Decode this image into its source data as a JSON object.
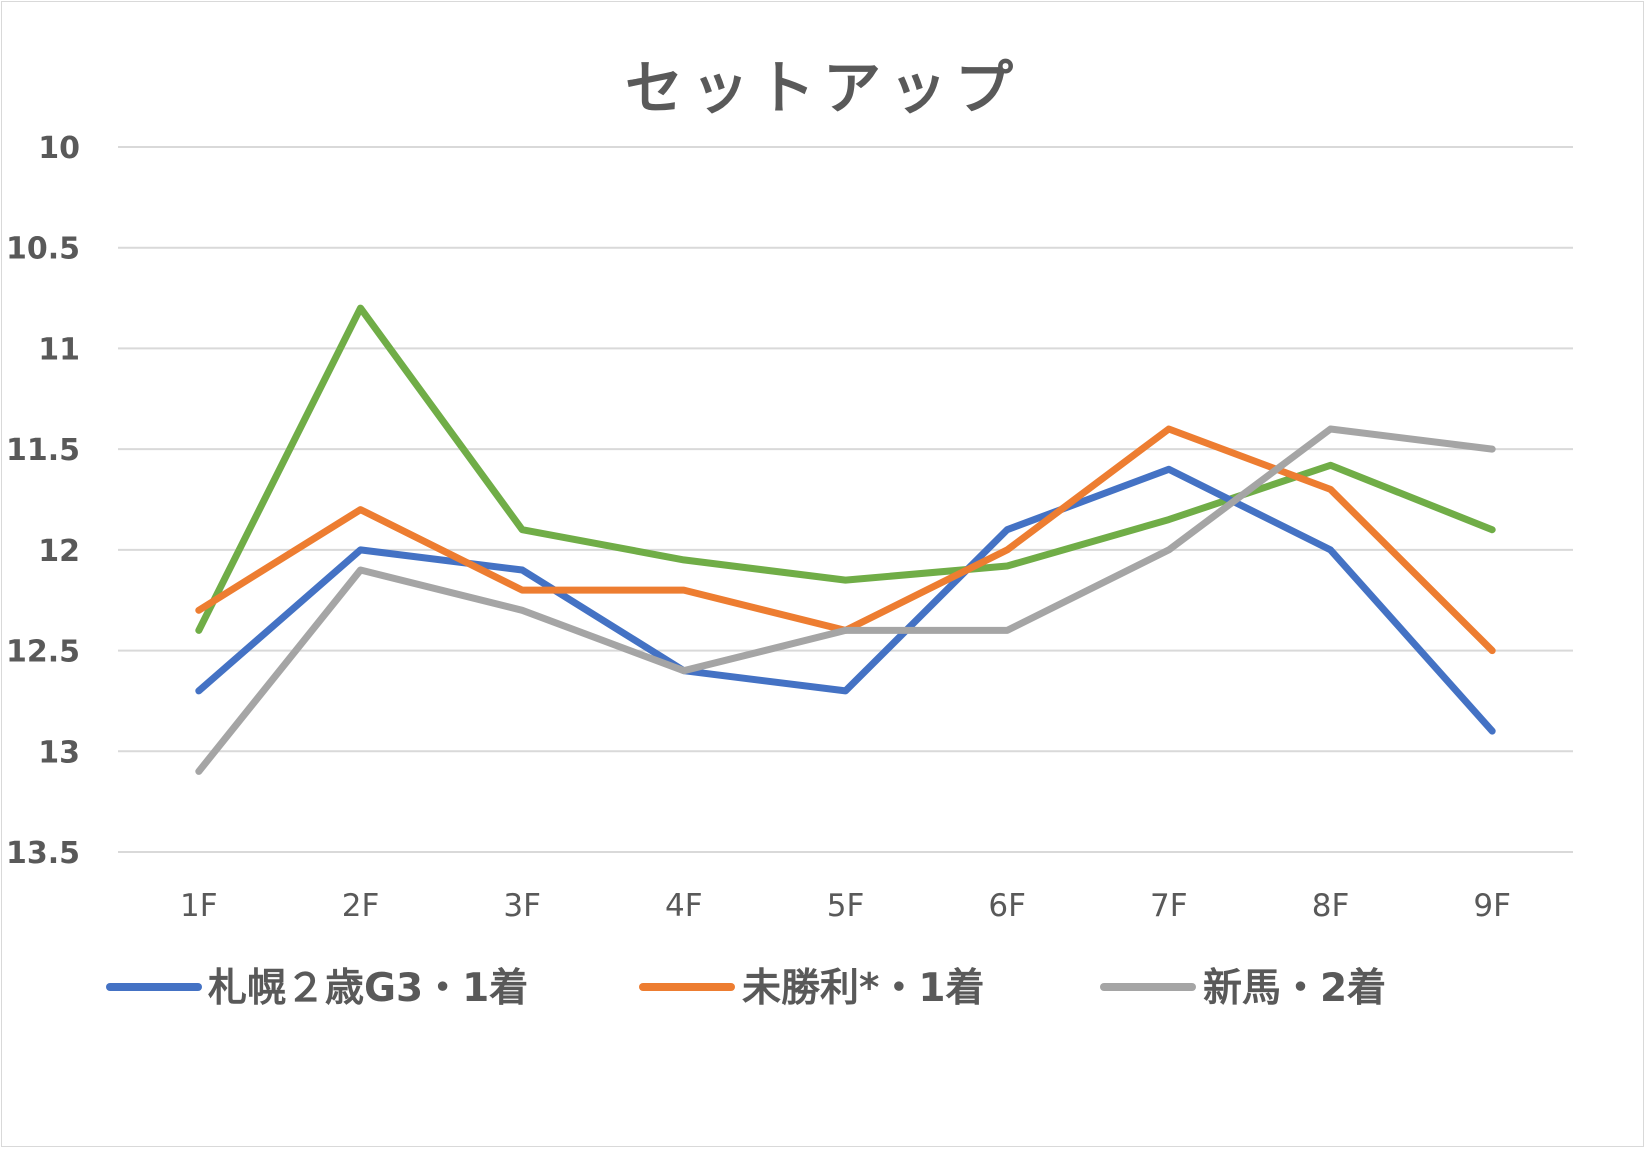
{
  "chart_data": {
    "type": "line",
    "title": "セットアップ",
    "xlabel": "",
    "ylabel": "",
    "categories": [
      "1F",
      "2F",
      "3F",
      "4F",
      "5F",
      "6F",
      "7F",
      "8F",
      "9F"
    ],
    "yticks": [
      "10",
      "10.5",
      "11",
      "11.5",
      "12",
      "12.5",
      "13",
      "13.5"
    ],
    "ylim": [
      10,
      13.5
    ],
    "y_reversed": true,
    "grid": true,
    "legend_position": "bottom",
    "series": [
      {
        "name": "札幌２歳G3・1着",
        "color": "#4472c4",
        "values": [
          12.7,
          12.0,
          12.1,
          12.6,
          12.7,
          11.9,
          11.6,
          12.0,
          12.9
        ],
        "in_legend": true
      },
      {
        "name": "未勝利*・1着",
        "color": "#ed7d31",
        "values": [
          12.3,
          11.8,
          12.2,
          12.2,
          12.4,
          12.0,
          11.4,
          11.7,
          12.5
        ],
        "in_legend": true
      },
      {
        "name": "新馬・2着",
        "color": "#a5a5a5",
        "values": [
          13.1,
          12.1,
          12.3,
          12.6,
          12.4,
          12.4,
          12.0,
          11.4,
          11.5
        ],
        "in_legend": true
      },
      {
        "name": "",
        "color": "#70ad47",
        "values": [
          12.4,
          10.8,
          11.9,
          12.05,
          12.15,
          12.08,
          11.85,
          11.58,
          11.9
        ],
        "in_legend": false
      }
    ]
  }
}
